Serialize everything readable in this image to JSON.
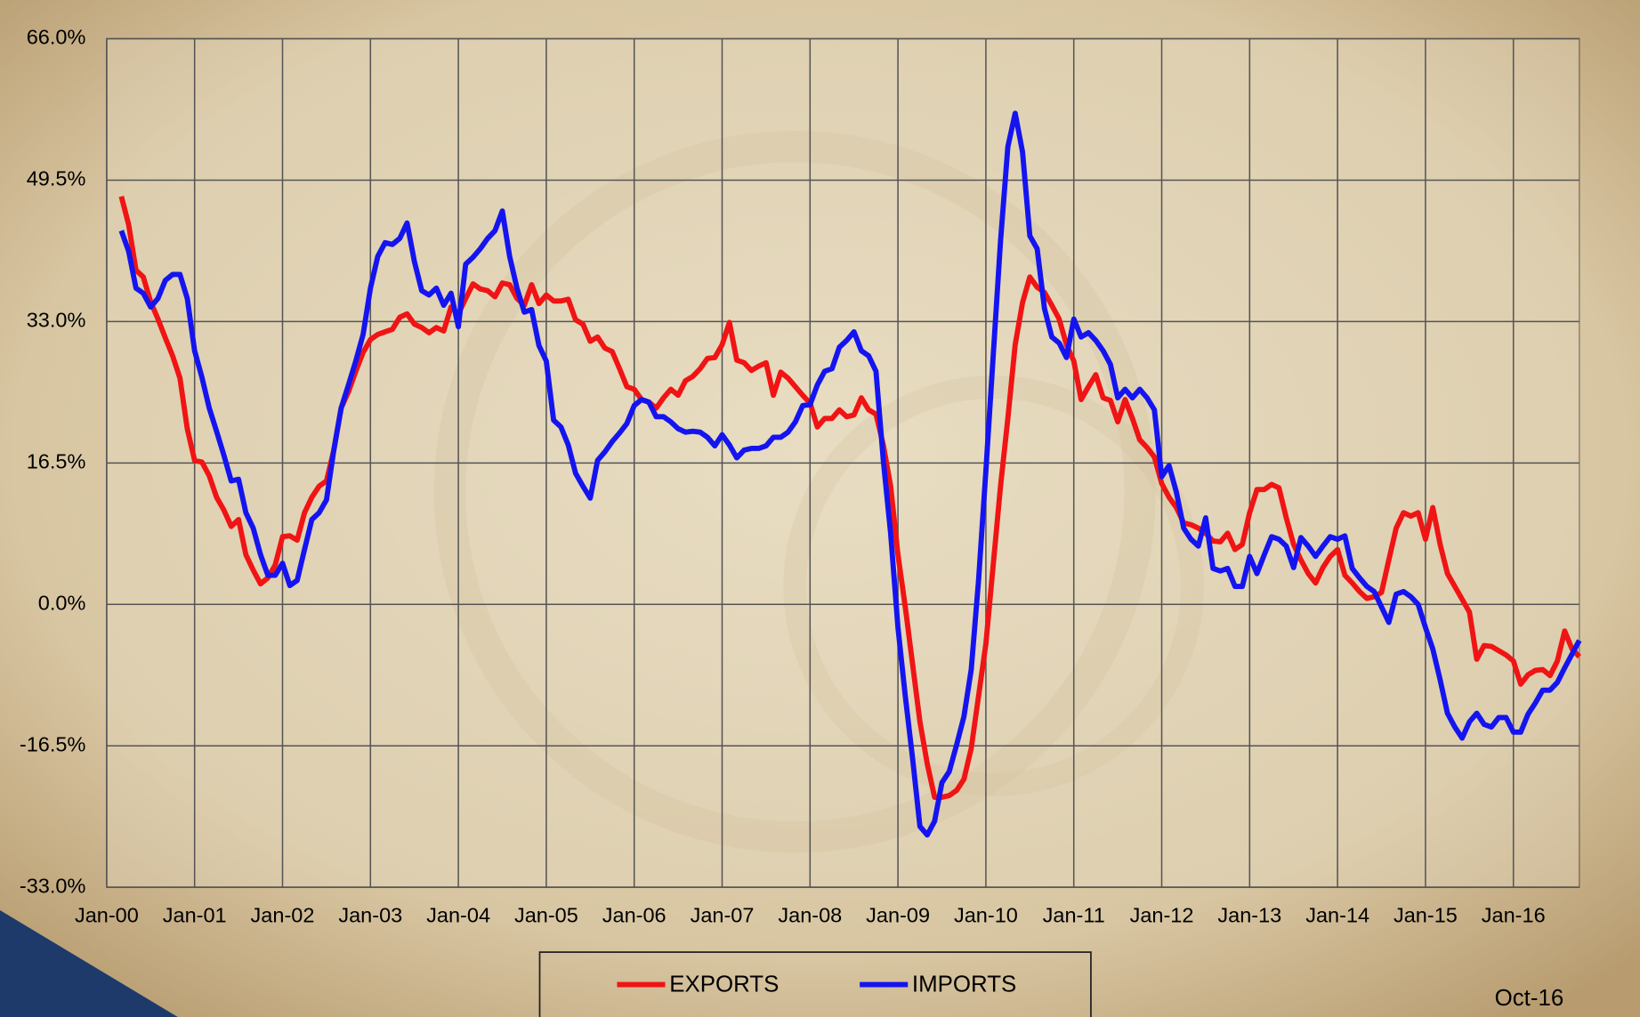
{
  "chart_data": {
    "type": "line",
    "categories": [
      "Jan-00",
      null,
      null,
      null,
      null,
      null,
      null,
      null,
      null,
      null,
      null,
      null,
      "Jan-01",
      null,
      null,
      null,
      null,
      null,
      null,
      null,
      null,
      null,
      null,
      null,
      "Jan-02",
      null,
      null,
      null,
      null,
      null,
      null,
      null,
      null,
      null,
      null,
      null,
      "Jan-03",
      null,
      null,
      null,
      null,
      null,
      null,
      null,
      null,
      null,
      null,
      null,
      "Jan-04",
      null,
      null,
      null,
      null,
      null,
      null,
      null,
      null,
      null,
      null,
      null,
      "Jan-05",
      null,
      null,
      null,
      null,
      null,
      null,
      null,
      null,
      null,
      null,
      null,
      "Jan-06",
      null,
      null,
      null,
      null,
      null,
      null,
      null,
      null,
      null,
      null,
      null,
      "Jan-07",
      null,
      null,
      null,
      null,
      null,
      null,
      null,
      null,
      null,
      null,
      null,
      "Jan-08",
      null,
      null,
      null,
      null,
      null,
      null,
      null,
      null,
      null,
      null,
      null,
      "Jan-09",
      null,
      null,
      null,
      null,
      null,
      null,
      null,
      null,
      null,
      null,
      null,
      "Jan-10",
      null,
      null,
      null,
      null,
      null,
      null,
      null,
      null,
      null,
      null,
      null,
      "Jan-11",
      null,
      null,
      null,
      null,
      null,
      null,
      null,
      null,
      null,
      null,
      null,
      "Jan-12",
      null,
      null,
      null,
      null,
      null,
      null,
      null,
      null,
      null,
      null,
      null,
      "Jan-13",
      null,
      null,
      null,
      null,
      null,
      null,
      null,
      null,
      null,
      null,
      null,
      "Jan-14",
      null,
      null,
      null,
      null,
      null,
      null,
      null,
      null,
      null,
      null,
      null,
      "Jan-15",
      null,
      null,
      null,
      null,
      null,
      null,
      null,
      null,
      null,
      null,
      null,
      "Jan-16",
      null,
      null,
      null,
      null,
      null,
      null,
      null,
      null,
      null
    ],
    "series": [
      {
        "name": "EXPORTS",
        "color": "#f01414",
        "values": [
          null,
          null,
          47.6,
          44.3,
          39,
          38.2,
          35.3,
          33.3,
          31.1,
          29,
          26.4,
          20.5,
          16.8,
          16.6,
          15,
          12.5,
          11,
          9.1,
          9.9,
          5.8,
          4,
          2.4,
          3.1,
          4.6,
          7.9,
          8,
          7.5,
          10.7,
          12.5,
          13.8,
          14.4,
          18,
          22.9,
          24.8,
          27.2,
          29.4,
          30.9,
          31.5,
          31.8,
          32.1,
          33.5,
          33.9,
          32.7,
          32.3,
          31.7,
          32.3,
          31.9,
          34.7,
          33.9,
          35.7,
          37.4,
          36.8,
          36.6,
          35.9,
          37.5,
          37.3,
          35.7,
          34.9,
          37.3,
          35.1,
          36.1,
          35.4,
          35.4,
          35.6,
          33.2,
          32.7,
          30.7,
          31.2,
          29.9,
          29.5,
          27.5,
          25.4,
          25.1,
          23.9,
          23.6,
          22.9,
          24.1,
          25.1,
          24.4,
          26.1,
          26.6,
          27.5,
          28.7,
          28.8,
          30.3,
          32.9,
          28.5,
          28.2,
          27.3,
          27.8,
          28.2,
          24.4,
          27.1,
          26.4,
          25.4,
          24.4,
          23.5,
          20.7,
          21.7,
          21.7,
          22.7,
          21.9,
          22.1,
          24.1,
          22.7,
          22.2,
          18.6,
          13.8,
          5.8,
          -0.3,
          -7,
          -13.7,
          -18.6,
          -22.5,
          -22.5,
          -22.3,
          -21.7,
          -20.4,
          -16.8,
          -10.7,
          -4.6,
          4.6,
          13.8,
          21.7,
          30.3,
          35.2,
          38.2,
          37,
          36.4,
          34.9,
          33.3,
          30.3,
          28.4,
          23.9,
          25.4,
          26.8,
          24.1,
          23.8,
          21.3,
          23.9,
          21.7,
          19.2,
          18.3,
          17.2,
          14.1,
          12.5,
          11.3,
          9.5,
          9.3,
          8.9,
          8.3,
          7.4,
          7.3,
          8.3,
          6.4,
          7,
          10.7,
          13.4,
          13.4,
          14,
          13.6,
          10.1,
          7,
          5.2,
          3.6,
          2.5,
          4.3,
          5.6,
          6.4,
          3.4,
          2.5,
          1.5,
          0.7,
          0.9,
          1.4,
          5.2,
          8.9,
          10.7,
          10.3,
          10.7,
          7.6,
          11.3,
          7,
          3.6,
          2.1,
          0.6,
          -0.9,
          -6.4,
          -4.8,
          -4.9,
          -5.4,
          -5.9,
          -6.6,
          -9.3,
          -8.2,
          -7.7,
          -7.6,
          -8.3,
          -6.6,
          -3.1,
          -5.2,
          -6.1
        ]
      },
      {
        "name": "IMPORTS",
        "color": "#1414f0",
        "values": [
          null,
          null,
          43.6,
          41.2,
          36.9,
          36.3,
          34.7,
          35.7,
          37.8,
          38.5,
          38.5,
          35.7,
          29.6,
          26.5,
          22.9,
          20.2,
          17.4,
          14.4,
          14.6,
          10.7,
          8.9,
          5.8,
          3.4,
          3.4,
          4.8,
          2.2,
          2.8,
          6.4,
          9.9,
          10.7,
          12.2,
          18,
          22.9,
          25.6,
          28.4,
          31.5,
          36.9,
          40.6,
          42.2,
          42,
          42.7,
          44.5,
          40,
          36.6,
          36.1,
          36.9,
          34.9,
          36.3,
          32.4,
          39.7,
          40.5,
          41.5,
          42.7,
          43.6,
          45.9,
          40.6,
          36.9,
          34.1,
          34.4,
          30.2,
          28.4,
          21.5,
          20.7,
          18.6,
          15.3,
          13.8,
          12.4,
          16.8,
          17.8,
          19,
          20,
          21.1,
          23.2,
          23.9,
          23.6,
          21.9,
          21.9,
          21.3,
          20.5,
          20.1,
          20.2,
          20.1,
          19.5,
          18.5,
          19.8,
          18.6,
          17.1,
          18,
          18.2,
          18.2,
          18.5,
          19.5,
          19.5,
          20.1,
          21.3,
          23.2,
          23.3,
          25.6,
          27.2,
          27.5,
          30,
          30.8,
          31.8,
          29.6,
          29,
          27.2,
          16.8,
          8.3,
          -2.7,
          -10.7,
          -18,
          -25.9,
          -26.9,
          -25.3,
          -20.8,
          -19.5,
          -16.4,
          -13.1,
          -7.6,
          2.8,
          15.6,
          29,
          42.4,
          53.4,
          57.3,
          52.8,
          43,
          41.5,
          34.5,
          31.2,
          30.5,
          28.8,
          33.3,
          31.2,
          31.7,
          30.8,
          29.6,
          28,
          24.1,
          25.1,
          24.1,
          25.1,
          24.1,
          22.7,
          14.9,
          16.2,
          13.1,
          8.9,
          7.6,
          6.8,
          10.1,
          4.2,
          3.9,
          4.2,
          2.1,
          2.1,
          5.6,
          3.6,
          5.8,
          7.9,
          7.6,
          6.8,
          4.3,
          7.8,
          6.8,
          5.6,
          6.8,
          7.9,
          7.6,
          8,
          4.2,
          3.1,
          2.1,
          1.5,
          -0.3,
          -2.1,
          1.2,
          1.5,
          0.9,
          0,
          -2.7,
          -5.2,
          -8.8,
          -12.7,
          -14.3,
          -15.6,
          -13.7,
          -12.7,
          -14,
          -14.3,
          -13.2,
          -13.2,
          -14.9,
          -14.9,
          -12.8,
          -11.5,
          -10,
          -10,
          -9.1,
          -7.4,
          -5.8,
          -4.2
        ]
      }
    ],
    "ylim": [
      -33,
      66
    ],
    "yticks": [
      {
        "value": -33,
        "label": "-33.0%"
      },
      {
        "value": -16.5,
        "label": "-16.5%"
      },
      {
        "value": 0,
        "label": "0.0%"
      },
      {
        "value": 16.5,
        "label": "16.5%"
      },
      {
        "value": 33,
        "label": "33.0%"
      },
      {
        "value": 49.5,
        "label": "49.5%"
      },
      {
        "value": 66,
        "label": "66.0%"
      }
    ],
    "grid": true,
    "legend": "bottom",
    "annotation": "Oct-16"
  }
}
